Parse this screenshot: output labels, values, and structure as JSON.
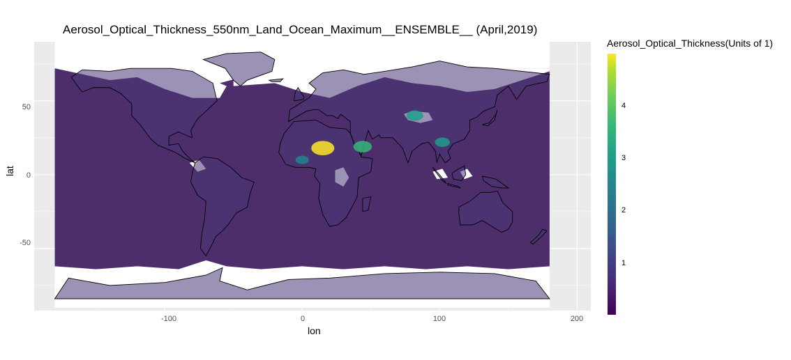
{
  "title": "Aerosol_Optical_Thickness_550nm_Land_Ocean_Maximum__ENSEMBLE__ (April,2019)",
  "x_label": "lon",
  "y_label": "lat",
  "legend_title": "Aerosol_Optical_Thickness(Units of 1)",
  "x_ticks": [
    "-100",
    "0",
    "100",
    "200"
  ],
  "y_ticks": [
    "50",
    "0",
    "-50"
  ],
  "legend_ticks": [
    "4",
    "3",
    "2",
    "1"
  ],
  "colors": {
    "ocean_low": "#4d2e6b",
    "land_low": "#4a3978",
    "no_data": "#ffffff",
    "panel": "#ebebeb",
    "coastline": "#000000"
  },
  "chart_data": {
    "type": "heatmap",
    "x_range": [
      -180,
      180
    ],
    "y_range": [
      -90,
      90
    ],
    "xlim": [
      -195,
      210
    ],
    "ylim": [
      -92,
      90
    ],
    "colorscale": "viridis",
    "color_range": [
      0,
      5
    ],
    "hotspots": [
      {
        "lon": 15,
        "lat": 18,
        "value": 4.9
      },
      {
        "lon": 44,
        "lat": 19,
        "value": 3.5
      },
      {
        "lon": 82,
        "lat": 40,
        "value": 3.0
      },
      {
        "lon": 102,
        "lat": 22,
        "value": 2.5
      },
      {
        "lon": 0,
        "lat": 10,
        "value": 2.0
      }
    ]
  }
}
